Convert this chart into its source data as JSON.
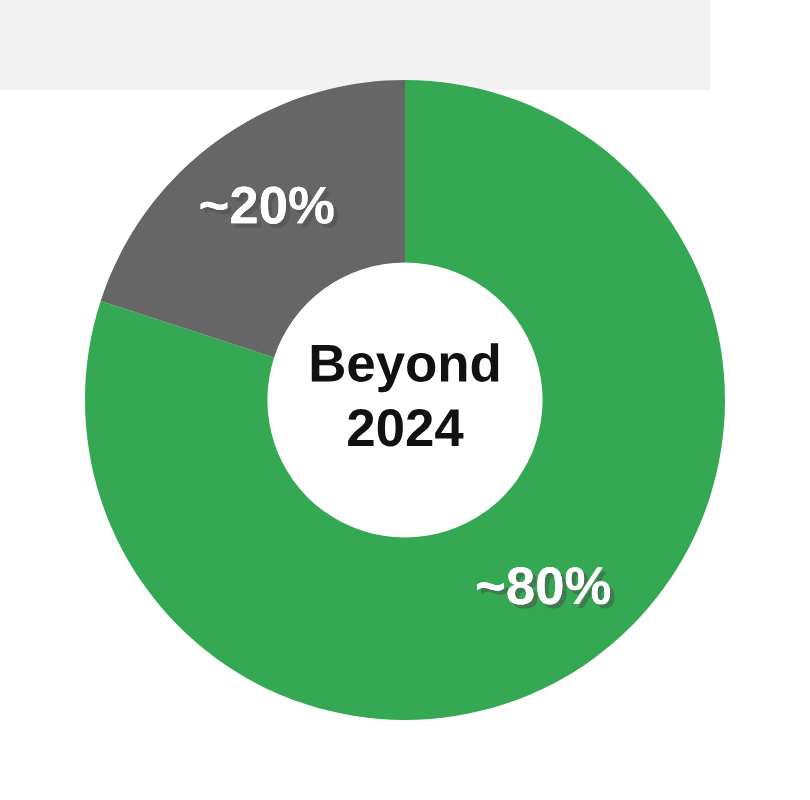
{
  "chart_data": {
    "type": "donut",
    "categories": [
      null,
      null
    ],
    "values": [
      80,
      20
    ],
    "colors": [
      "#35a853",
      "#666666"
    ],
    "value_labels": [
      "~80%",
      "~20%"
    ],
    "annotations": [
      "Beyond\n2024"
    ]
  }
}
